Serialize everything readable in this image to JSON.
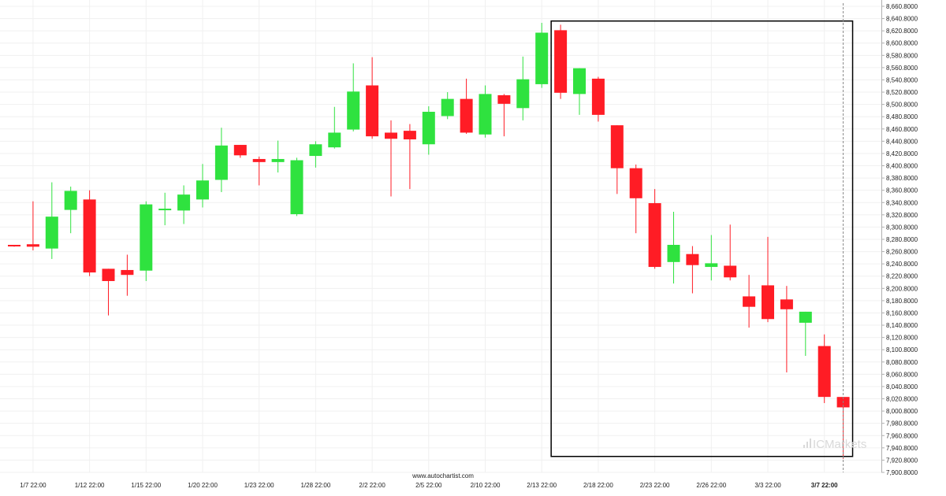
{
  "colors": {
    "up": "#2fe23f",
    "down": "#ff1c25",
    "grid": "#f0f0f0",
    "frame": "#000000",
    "watermark": "#d9d9d9"
  },
  "source_label": "www.autochartist.com",
  "brand": "ICMarkets",
  "chart_data": {
    "type": "candlestick",
    "ylim": [
      7900,
      8660
    ],
    "y_ticks": [
      "8,660.8000",
      "8,640.8000",
      "8,620.8000",
      "8,600.8000",
      "8,580.8000",
      "8,560.8000",
      "8,540.8000",
      "8,520.8000",
      "8,500.8000",
      "8,480.8000",
      "8,460.8000",
      "8,440.8000",
      "8,420.8000",
      "8,400.8000",
      "8,380.8000",
      "8,360.8000",
      "8,340.8000",
      "8,320.8000",
      "8,300.8000",
      "8,280.8000",
      "8,260.8000",
      "8,240.8000",
      "8,220.8000",
      "8,200.8000",
      "8,180.8000",
      "8,160.8000",
      "8,140.8000",
      "8,120.8000",
      "8,100.8000",
      "8,080.8000",
      "8,060.8000",
      "8,040.8000",
      "8,020.8000",
      "8,000.8000",
      "7,980.8000",
      "7,960.8000",
      "7,940.8000",
      "7,920.8000",
      "7,900.8000"
    ],
    "x_ticks": [
      {
        "label": "1/7 22:00",
        "index": 1
      },
      {
        "label": "1/12 22:00",
        "index": 4
      },
      {
        "label": "1/15 22:00",
        "index": 7
      },
      {
        "label": "1/20 22:00",
        "index": 10
      },
      {
        "label": "1/23 22:00",
        "index": 13
      },
      {
        "label": "1/28 22:00",
        "index": 16
      },
      {
        "label": "2/2 22:00",
        "index": 19
      },
      {
        "label": "2/5 22:00",
        "index": 22
      },
      {
        "label": "2/10 22:00",
        "index": 25
      },
      {
        "label": "2/13 22:00",
        "index": 28
      },
      {
        "label": "2/18 22:00",
        "index": 31
      },
      {
        "label": "2/23 22:00",
        "index": 34
      },
      {
        "label": "2/26 22:00",
        "index": 37
      },
      {
        "label": "3/3 22:00",
        "index": 40
      },
      {
        "label": "3/7 22:00",
        "index": 43,
        "bold": true
      }
    ],
    "candles": [
      {
        "o": 8271,
        "h": 8271,
        "l": 8268,
        "c": 8269
      },
      {
        "o": 8272,
        "h": 8342,
        "l": 8262,
        "c": 8268
      },
      {
        "o": 8265,
        "h": 8373,
        "l": 8248,
        "c": 8317
      },
      {
        "o": 8328,
        "h": 8366,
        "l": 8290,
        "c": 8359
      },
      {
        "o": 8345,
        "h": 8360,
        "l": 8220,
        "c": 8226
      },
      {
        "o": 8232,
        "h": 8232,
        "l": 8156,
        "c": 8212
      },
      {
        "o": 8230,
        "h": 8255,
        "l": 8188,
        "c": 8222
      },
      {
        "o": 8229,
        "h": 8342,
        "l": 8212,
        "c": 8337
      },
      {
        "o": 8328,
        "h": 8356,
        "l": 8303,
        "c": 8330
      },
      {
        "o": 8327,
        "h": 8368,
        "l": 8305,
        "c": 8353
      },
      {
        "o": 8345,
        "h": 8403,
        "l": 8332,
        "c": 8376
      },
      {
        "o": 8377,
        "h": 8462,
        "l": 8357,
        "c": 8433
      },
      {
        "o": 8434,
        "h": 8434,
        "l": 8413,
        "c": 8417
      },
      {
        "o": 8411,
        "h": 8415,
        "l": 8368,
        "c": 8406
      },
      {
        "o": 8406,
        "h": 8441,
        "l": 8389,
        "c": 8411
      },
      {
        "o": 8321,
        "h": 8413,
        "l": 8318,
        "c": 8409
      },
      {
        "o": 8416,
        "h": 8440,
        "l": 8397,
        "c": 8435
      },
      {
        "o": 8430,
        "h": 8496,
        "l": 8428,
        "c": 8454
      },
      {
        "o": 8459,
        "h": 8567,
        "l": 8456,
        "c": 8521
      },
      {
        "o": 8531,
        "h": 8577,
        "l": 8444,
        "c": 8448
      },
      {
        "o": 8454,
        "h": 8474,
        "l": 8350,
        "c": 8444
      },
      {
        "o": 8457,
        "h": 8468,
        "l": 8362,
        "c": 8443
      },
      {
        "o": 8435,
        "h": 8497,
        "l": 8418,
        "c": 8488
      },
      {
        "o": 8481,
        "h": 8520,
        "l": 8476,
        "c": 8509
      },
      {
        "o": 8509,
        "h": 8542,
        "l": 8452,
        "c": 8454
      },
      {
        "o": 8451,
        "h": 8531,
        "l": 8446,
        "c": 8517
      },
      {
        "o": 8515,
        "h": 8517,
        "l": 8448,
        "c": 8501
      },
      {
        "o": 8494,
        "h": 8578,
        "l": 8474,
        "c": 8541
      },
      {
        "o": 8533,
        "h": 8633,
        "l": 8527,
        "c": 8617
      },
      {
        "o": 8621,
        "h": 8630,
        "l": 8509,
        "c": 8519
      },
      {
        "o": 8517,
        "h": 8559,
        "l": 8483,
        "c": 8559
      },
      {
        "o": 8542,
        "h": 8545,
        "l": 8472,
        "c": 8483
      },
      {
        "o": 8466,
        "h": 8466,
        "l": 8354,
        "c": 8396
      },
      {
        "o": 8396,
        "h": 8402,
        "l": 8290,
        "c": 8347
      },
      {
        "o": 8339,
        "h": 8362,
        "l": 8232,
        "c": 8235
      },
      {
        "o": 8243,
        "h": 8325,
        "l": 8208,
        "c": 8271
      },
      {
        "o": 8256,
        "h": 8269,
        "l": 8192,
        "c": 8238
      },
      {
        "o": 8235,
        "h": 8287,
        "l": 8213,
        "c": 8241
      },
      {
        "o": 8237,
        "h": 8304,
        "l": 8213,
        "c": 8218
      },
      {
        "o": 8187,
        "h": 8222,
        "l": 8136,
        "c": 8170
      },
      {
        "o": 8205,
        "h": 8284,
        "l": 8145,
        "c": 8150
      },
      {
        "o": 8182,
        "h": 8204,
        "l": 8063,
        "c": 8166
      },
      {
        "o": 8144,
        "h": 8162,
        "l": 8090,
        "c": 8162
      },
      {
        "o": 8106,
        "h": 8125,
        "l": 8013,
        "c": 8023
      },
      {
        "o": 8023,
        "h": 8023,
        "l": 7922,
        "c": 8006
      }
    ],
    "highlight": {
      "from_index": 28.5,
      "to_index": 44.5,
      "top": 8636,
      "bottom": 7926
    },
    "current_index": 44
  }
}
